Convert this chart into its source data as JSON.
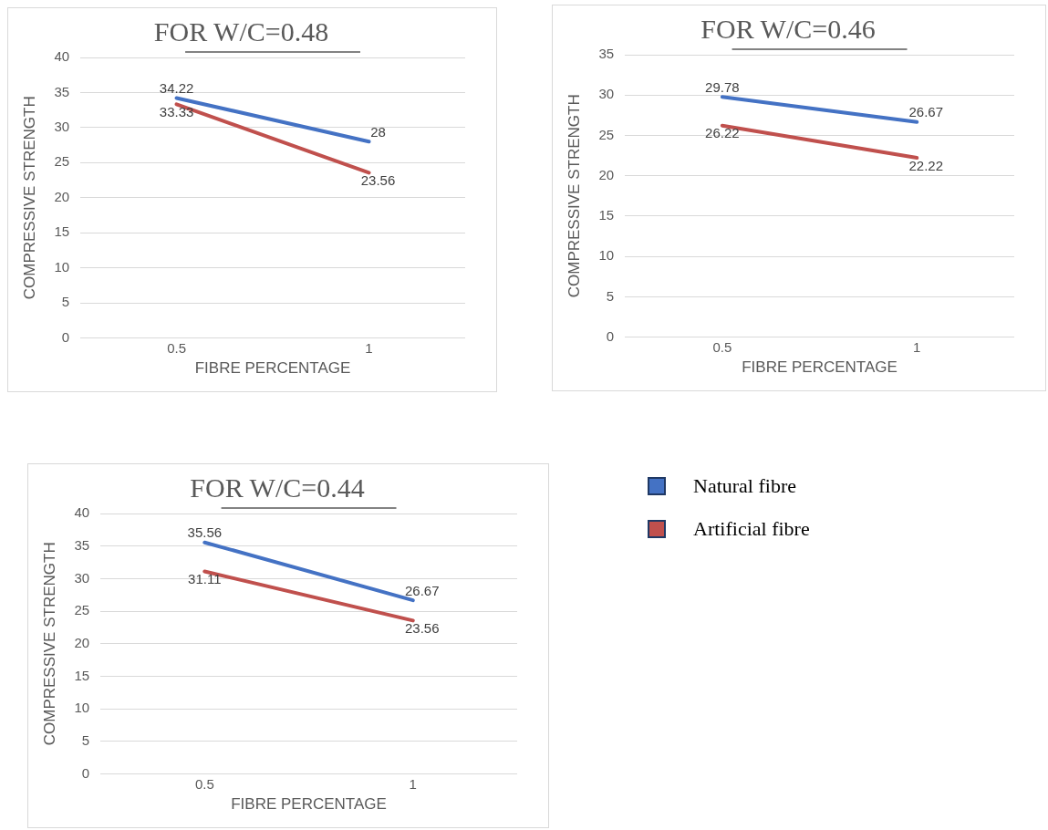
{
  "chart_data": [
    {
      "type": "line",
      "title": "FOR W/C=0.48",
      "xlabel": "FIBRE PERCENTAGE",
      "ylabel": "COMPRESSIVE STRENGTH",
      "categories": [
        "0.5",
        "1"
      ],
      "series": [
        {
          "color": "#4472c4",
          "values": [
            34.22,
            28
          ]
        },
        {
          "color": "#c0504d",
          "values": [
            33.33,
            23.56
          ]
        }
      ],
      "ylim": [
        0,
        40
      ],
      "yticks": [
        0,
        5,
        10,
        15,
        20,
        25,
        30,
        35,
        40
      ],
      "grid": "y",
      "data_labels": true,
      "marker": "none",
      "legend": false
    },
    {
      "type": "line",
      "title": "FOR W/C=0.46",
      "xlabel": "FIBRE PERCENTAGE",
      "ylabel": "COMPRESSIVE STRENGTH",
      "categories": [
        "0.5",
        "1"
      ],
      "series": [
        {
          "color": "#4472c4",
          "values": [
            29.78,
            26.67
          ]
        },
        {
          "color": "#c0504d",
          "values": [
            26.22,
            22.22
          ]
        }
      ],
      "ylim": [
        0,
        35
      ],
      "yticks": [
        0,
        5,
        10,
        15,
        20,
        25,
        30,
        35
      ],
      "grid": "y",
      "data_labels": true,
      "marker": "none",
      "legend": false
    },
    {
      "type": "line",
      "title": "FOR W/C=0.44",
      "xlabel": "FIBRE PERCENTAGE",
      "ylabel": "COMPRESSIVE STRENGTH",
      "categories": [
        "0.5",
        "1"
      ],
      "series": [
        {
          "name": "Natural fibre",
          "color": "#4472c4",
          "values": [
            35.56,
            26.67
          ]
        },
        {
          "name": "Artificial fibre",
          "color": "#c0504d",
          "values": [
            31.11,
            23.56
          ]
        }
      ],
      "ylim": [
        0,
        40
      ],
      "yticks": [
        0,
        5,
        10,
        15,
        20,
        25,
        30,
        35,
        40
      ],
      "grid": "y",
      "data_labels": true,
      "marker": "none",
      "legend": "right"
    }
  ]
}
